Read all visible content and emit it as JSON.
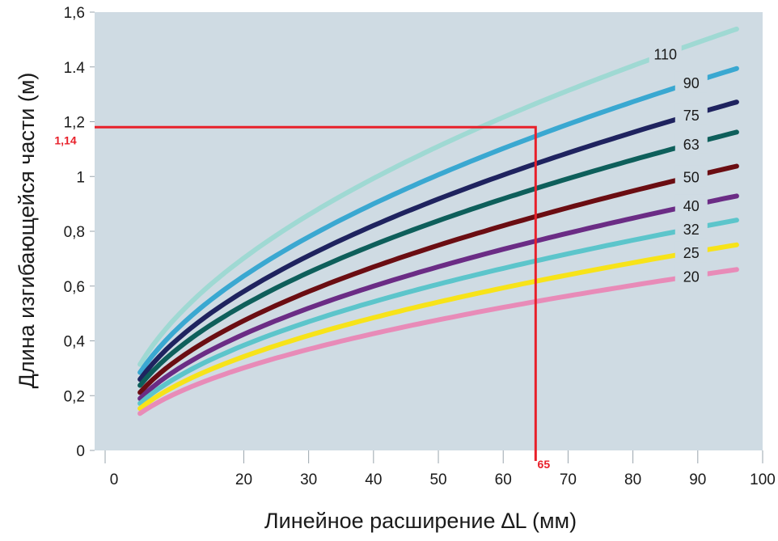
{
  "chart_data": {
    "type": "line",
    "xlabel": "Линейное расширение ∆L (мм)",
    "ylabel": "Длина изгибающейся части (м)",
    "xlim": [
      -3,
      100
    ],
    "ylim": [
      0,
      1.6
    ],
    "x_ticks": [
      "0",
      "20",
      "30",
      "40",
      "50",
      "60",
      "70",
      "80",
      "90",
      "100"
    ],
    "x_tick_values": [
      0,
      20,
      30,
      40,
      50,
      60,
      70,
      80,
      90,
      100
    ],
    "y_ticks": [
      "0",
      "0,2",
      "0,4",
      "0,6",
      "0,8",
      "1",
      "1,2",
      "1.4",
      "1,6"
    ],
    "y_tick_values": [
      0,
      0.2,
      0.4,
      0.6,
      0.8,
      1.0,
      1.2,
      1.4,
      1.6
    ],
    "grid": false,
    "plot_background": "#cfdbe3",
    "x_range": [
      4,
      96
    ],
    "series": [
      {
        "name": "110",
        "color": "#9fd9d3",
        "a": 0.157,
        "b": 0.5,
        "x_end": 85
      },
      {
        "name": "90",
        "color": "#3aa8d1",
        "a": 0.1423,
        "b": 0.5,
        "x_end": 89
      },
      {
        "name": "75",
        "color": "#1f235f",
        "a": 0.1298,
        "b": 0.5,
        "x_end": 89
      },
      {
        "name": "63",
        "color": "#0e5f5b",
        "a": 0.1186,
        "b": 0.5,
        "x_end": 89
      },
      {
        "name": "50",
        "color": "#6b0d12",
        "a": 0.1059,
        "b": 0.5,
        "x_end": 89
      },
      {
        "name": "40",
        "color": "#6b2c85",
        "a": 0.0948,
        "b": 0.5,
        "x_end": 89
      },
      {
        "name": "32",
        "color": "#5cc5cb",
        "a": 0.0858,
        "b": 0.5,
        "x_end": 89
      },
      {
        "name": "25",
        "color": "#f7e319",
        "a": 0.0766,
        "b": 0.5,
        "x_end": 89
      },
      {
        "name": "20",
        "color": "#e88bb8",
        "a": 0.0674,
        "b": 0.5,
        "x_end": 89
      }
    ],
    "annotation": {
      "x": 65,
      "y": 1.18,
      "x_label": "65",
      "y_label": "1,14",
      "color": "#e8202a"
    }
  }
}
